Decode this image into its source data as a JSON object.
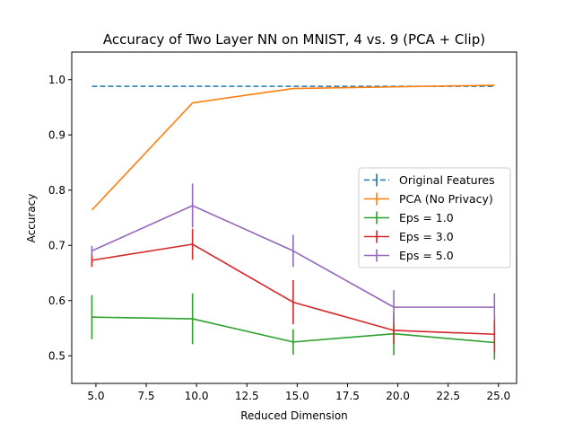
{
  "chart_data": {
    "type": "line",
    "title": "Accuracy of Two Layer NN on MNIST, 4 vs. 9 (PCA + Clip)",
    "xlabel": "Reduced Dimension",
    "ylabel": "Accuracy",
    "xlim": [
      3.8,
      25.9
    ],
    "ylim": [
      0.45,
      1.05
    ],
    "xticks": [
      5.0,
      7.5,
      10.0,
      12.5,
      15.0,
      17.5,
      20.0,
      22.5,
      25.0
    ],
    "xtick_labels": [
      "5.0",
      "7.5",
      "10.0",
      "12.5",
      "15.0",
      "17.5",
      "20.0",
      "22.5",
      "25.0"
    ],
    "yticks": [
      0.5,
      0.6,
      0.7,
      0.8,
      0.9,
      1.0
    ],
    "ytick_labels": [
      "0.5",
      "0.6",
      "0.7",
      "0.8",
      "0.9",
      "1.0"
    ],
    "grid": false,
    "legend_position": "center-right",
    "series": [
      {
        "name": "Original Features",
        "color": "#1f77b4",
        "dashed": true,
        "x": [
          4.8,
          24.8
        ],
        "y": [
          0.988,
          0.988
        ],
        "err": [
          0,
          0
        ],
        "show_errorbars": false
      },
      {
        "name": "PCA (No Privacy)",
        "color": "#ff7f0e",
        "dashed": false,
        "x": [
          4.8,
          9.8,
          14.8,
          19.8,
          24.8
        ],
        "y": [
          0.764,
          0.958,
          0.984,
          0.987,
          0.99
        ],
        "err": [
          0,
          0,
          0,
          0,
          0
        ],
        "show_errorbars": false
      },
      {
        "name": "Eps = 1.0",
        "color": "#2ca02c",
        "dashed": false,
        "x": [
          4.8,
          9.8,
          14.8,
          19.8,
          24.8
        ],
        "y": [
          0.57,
          0.567,
          0.525,
          0.54,
          0.524
        ],
        "err": [
          0.04,
          0.046,
          0.023,
          0.039,
          0.031
        ],
        "show_errorbars": true
      },
      {
        "name": "Eps = 3.0",
        "color": "#d62728",
        "dashed": false,
        "x": [
          4.8,
          9.8,
          14.8,
          19.8,
          24.8
        ],
        "y": [
          0.673,
          0.702,
          0.597,
          0.546,
          0.539
        ],
        "err": [
          0.012,
          0.028,
          0.04,
          0.025,
          0.033
        ],
        "show_errorbars": true
      },
      {
        "name": "Eps = 5.0",
        "color": "#9467bd",
        "dashed": false,
        "x": [
          4.8,
          9.8,
          14.8,
          19.8,
          24.8
        ],
        "y": [
          0.69,
          0.772,
          0.69,
          0.588,
          0.588
        ],
        "err": [
          0.009,
          0.04,
          0.029,
          0.031,
          0.025
        ],
        "show_errorbars": true
      }
    ]
  }
}
